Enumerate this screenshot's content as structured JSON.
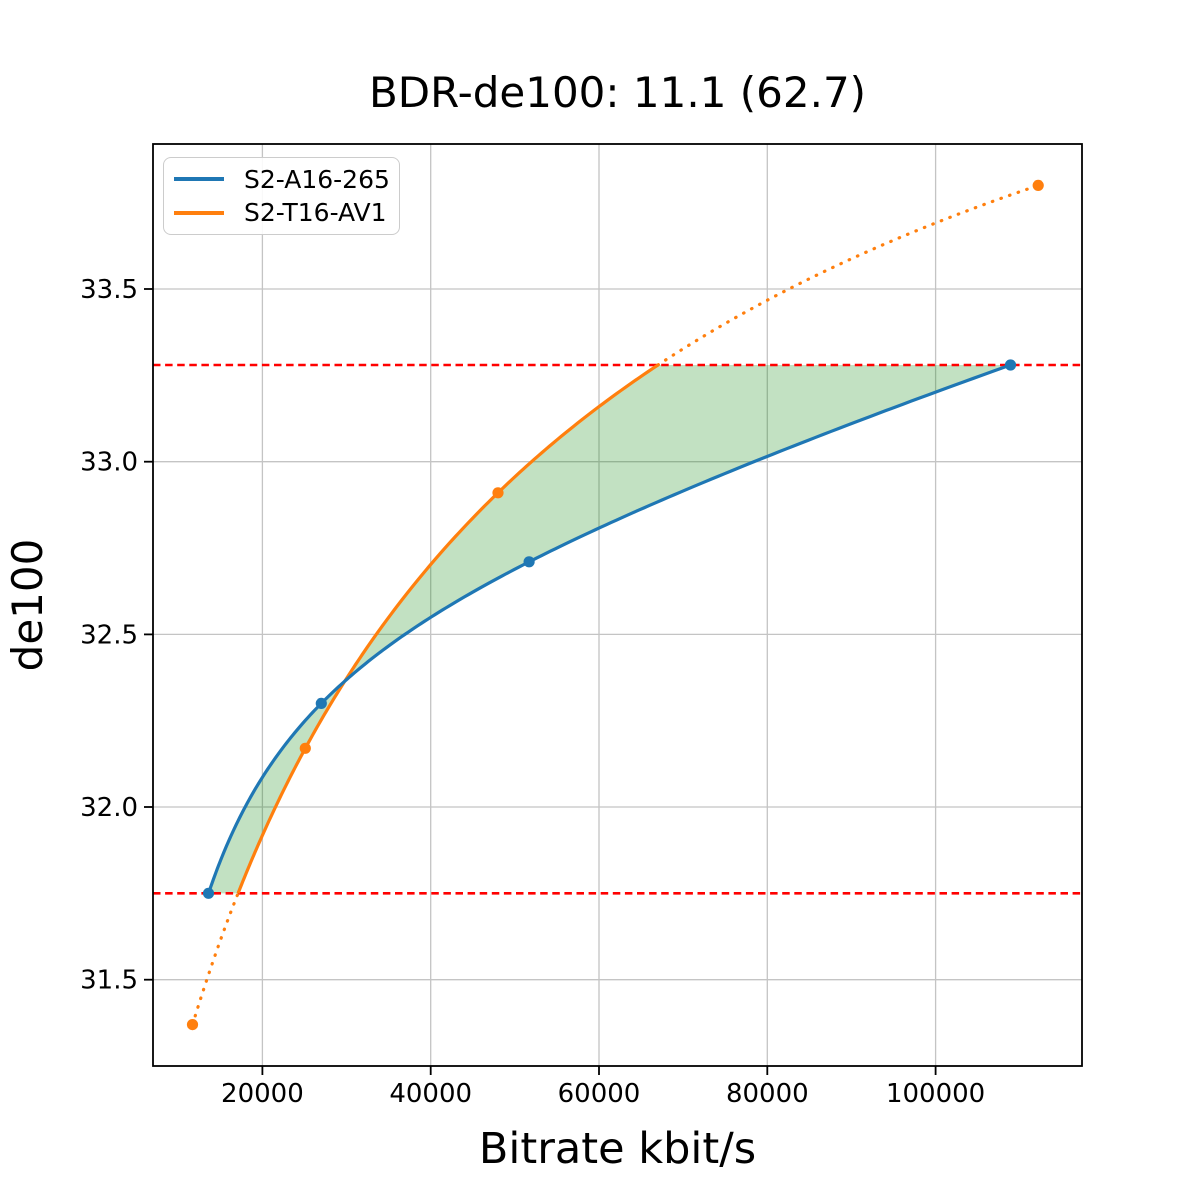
{
  "chart_data": {
    "type": "line",
    "title": "BDR-de100: 11.1 (62.7)",
    "xlabel": "Bitrate kbit/s",
    "ylabel": "de100",
    "xlim": [
      7000,
      117400
    ],
    "ylim": [
      31.25,
      33.92
    ],
    "xticks": [
      20000,
      40000,
      60000,
      80000,
      100000
    ],
    "yticks": [
      31.5,
      32.0,
      32.5,
      33.0,
      33.5
    ],
    "grid": true,
    "legend": {
      "position": "upper-left"
    },
    "interpolation": "cubic-in-log10-bitrate",
    "series": [
      {
        "name": "S2-A16-265",
        "color": "#1f77b4",
        "x": [
          13600,
          27000,
          51700,
          108900
        ],
        "y": [
          31.75,
          32.3,
          32.71,
          33.28
        ]
      },
      {
        "name": "S2-T16-AV1",
        "color": "#ff7f0e",
        "x": [
          11700,
          25100,
          48000,
          112200
        ],
        "y": [
          31.37,
          32.17,
          32.91,
          33.8
        ]
      }
    ],
    "reference_lines": {
      "color": "#ff0000",
      "style": "dashed",
      "values": [
        31.75,
        33.28
      ]
    },
    "fill_between": {
      "color": "#008000",
      "opacity": 0.24
    }
  }
}
